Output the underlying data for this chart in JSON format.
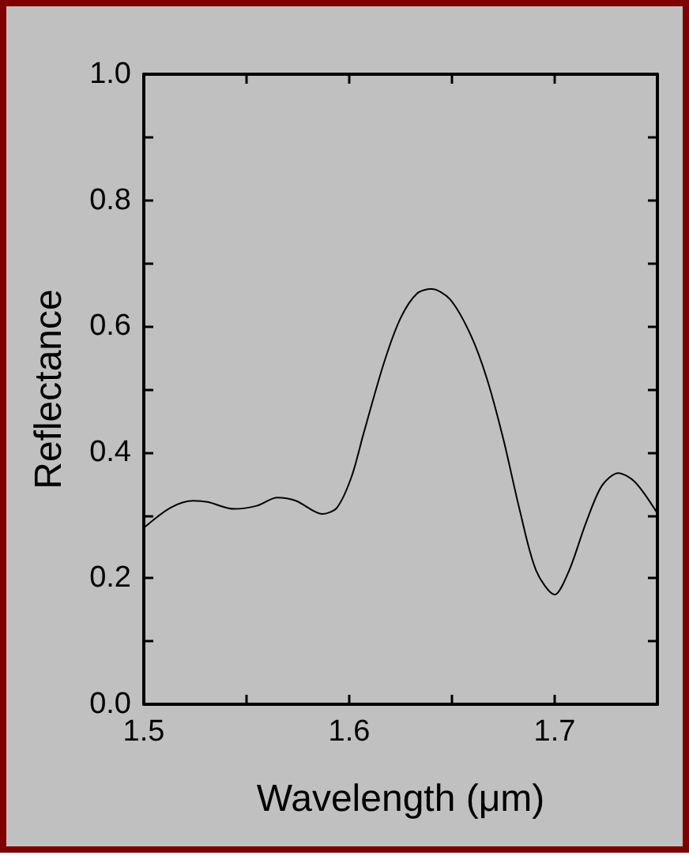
{
  "chart_data": {
    "type": "line",
    "xlabel": "Wavelength (μm)",
    "ylabel": "Reflectance",
    "x": [
      1.5,
      1.513,
      1.524,
      1.531,
      1.544,
      1.555,
      1.565,
      1.574,
      1.587,
      1.594,
      1.601,
      1.607,
      1.617,
      1.625,
      1.633,
      1.64,
      1.649,
      1.659,
      1.667,
      1.675,
      1.683,
      1.691,
      1.7,
      1.707,
      1.715,
      1.723,
      1.731,
      1.739,
      1.75
    ],
    "series": [
      {
        "color": "#000000",
        "values": [
          0.28,
          0.312,
          0.323,
          0.321,
          0.31,
          0.315,
          0.328,
          0.323,
          0.302,
          0.312,
          0.36,
          0.43,
          0.543,
          0.613,
          0.652,
          0.659,
          0.643,
          0.587,
          0.517,
          0.421,
          0.308,
          0.212,
          0.174,
          0.212,
          0.286,
          0.347,
          0.367,
          0.353,
          0.303
        ]
      }
    ],
    "xlim": [
      1.5,
      1.75
    ],
    "xticks": [
      1.5,
      {
        "value": 1.55,
        "label": null
      },
      1.6,
      {
        "value": 1.65,
        "label": null
      },
      1.7,
      {
        "value": 1.75,
        "label": null
      }
    ],
    "ylim": [
      0,
      1
    ],
    "yticks": [
      "0.0",
      {
        "value": 0.1,
        "label": null
      },
      0.2,
      {
        "value": 0.3,
        "label": null
      },
      0.4,
      {
        "value": 0.5,
        "label": null
      },
      0.6,
      {
        "value": 0.7,
        "label": null
      },
      0.8,
      {
        "value": 0.9,
        "label": null
      },
      "1.0"
    ],
    "grid": false,
    "marker": "none",
    "line_style": "solid"
  }
}
